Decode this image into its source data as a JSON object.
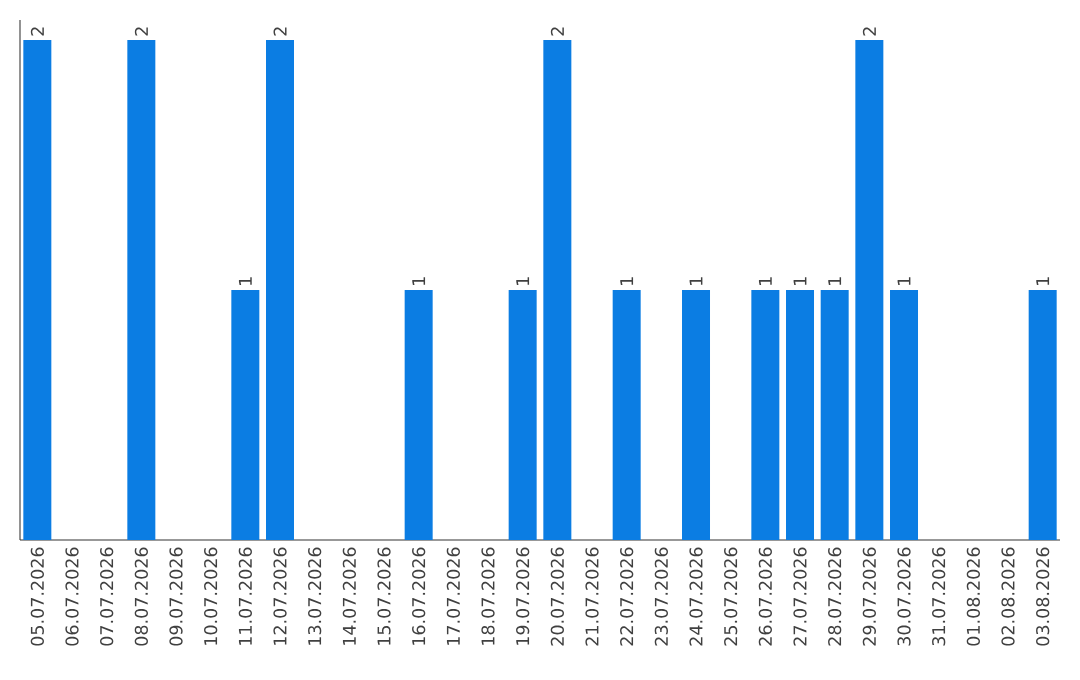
{
  "chart_data": {
    "type": "bar",
    "categories": [
      "05.07.2026",
      "06.07.2026",
      "07.07.2026",
      "08.07.2026",
      "09.07.2026",
      "10.07.2026",
      "11.07.2026",
      "12.07.2026",
      "13.07.2026",
      "14.07.2026",
      "15.07.2026",
      "16.07.2026",
      "17.07.2026",
      "18.07.2026",
      "19.07.2026",
      "20.07.2026",
      "21.07.2026",
      "22.07.2026",
      "23.07.2026",
      "24.07.2026",
      "25.07.2026",
      "26.07.2026",
      "27.07.2026",
      "28.07.2026",
      "29.07.2026",
      "30.07.2026",
      "31.07.2026",
      "01.08.2026",
      "02.08.2026",
      "03.08.2026"
    ],
    "values": [
      2,
      0,
      0,
      2,
      0,
      0,
      1,
      2,
      0,
      0,
      0,
      1,
      0,
      0,
      1,
      2,
      0,
      1,
      0,
      1,
      0,
      1,
      1,
      1,
      2,
      1,
      0,
      0,
      0,
      1
    ],
    "value_labels": [
      "2",
      null,
      null,
      "2",
      null,
      null,
      "1",
      "2",
      null,
      null,
      null,
      "1",
      null,
      null,
      "1",
      "2",
      null,
      "1",
      null,
      "1",
      null,
      "1",
      "1",
      "1",
      "2",
      "1",
      null,
      null,
      null,
      "1"
    ],
    "color": "#0b7de3"
  }
}
